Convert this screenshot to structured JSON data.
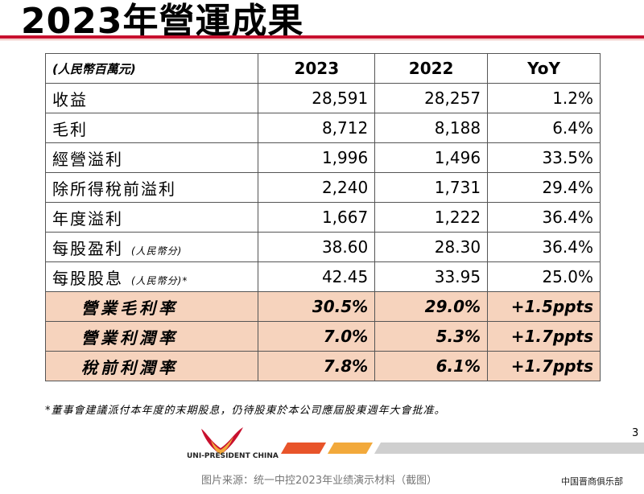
{
  "title": "2023年營運成果",
  "table": {
    "unit_label": "(人民幣百萬元)",
    "headers": [
      "2023",
      "2022",
      "YoY"
    ],
    "rows": [
      {
        "label": "收益",
        "sub": "",
        "v2023": "28,591",
        "v2022": "28,257",
        "yoy": "1.2%"
      },
      {
        "label": "毛利",
        "sub": "",
        "v2023": "8,712",
        "v2022": "8,188",
        "yoy": "6.4%"
      },
      {
        "label": "經營溢利",
        "sub": "",
        "v2023": "1,996",
        "v2022": "1,496",
        "yoy": "33.5%"
      },
      {
        "label": "除所得稅前溢利",
        "sub": "",
        "v2023": "2,240",
        "v2022": "1,731",
        "yoy": "29.4%"
      },
      {
        "label": "年度溢利",
        "sub": "",
        "v2023": "1,667",
        "v2022": "1,222",
        "yoy": "36.4%"
      },
      {
        "label": "每股盈利",
        "sub": "(人民幣分)",
        "v2023": "38.60",
        "v2022": "28.30",
        "yoy": "36.4%"
      },
      {
        "label": "每股股息",
        "sub": "(人民幣分)*",
        "v2023": "42.45",
        "v2022": "33.95",
        "yoy": "25.0%"
      }
    ],
    "highlight_rows": [
      {
        "label": "營業毛利率",
        "v2023": "30.5%",
        "v2022": "29.0%",
        "yoy": "+1.5ppts"
      },
      {
        "label": "營業利潤率",
        "v2023": "7.0%",
        "v2022": "5.3%",
        "yoy": "+1.7ppts"
      },
      {
        "label": "稅前利潤率",
        "v2023": "7.8%",
        "v2022": "6.1%",
        "yoy": "+1.7ppts"
      }
    ]
  },
  "footnote": "*董事會建議派付本年度的末期股息，仍待股東於本公司應屆股東週年大會批准。",
  "page_number": "3",
  "brand": "UNI-PRESIDENT CHINA",
  "caption": "图片来源：统一中控2023年业绩演示材料（截图）",
  "watermark": "中国晋商俱乐部",
  "colors": {
    "accent_red": "#c8102e",
    "highlight_fill": "#f6d3bd",
    "stripe_orange": "#e8542a",
    "stripe_yellow": "#f2a93b",
    "stripe_gray": "#cfcfcf"
  }
}
